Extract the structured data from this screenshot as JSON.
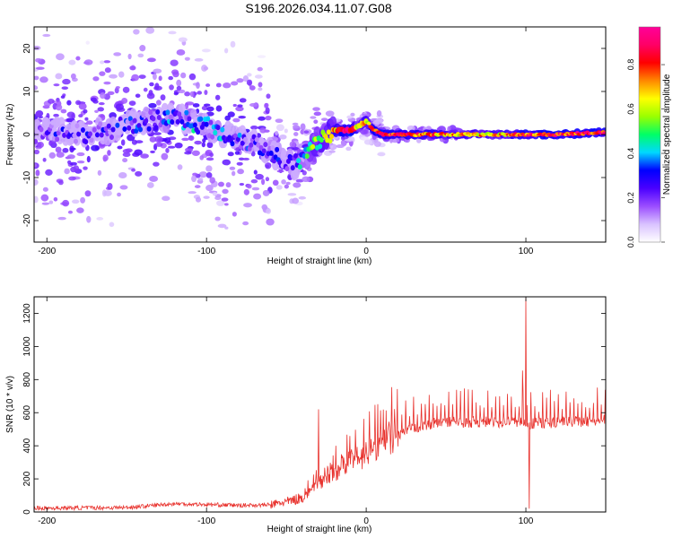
{
  "title": "S196.2026.034.11.07.G08",
  "chart_data": [
    {
      "type": "heatmap",
      "xlabel": "Height of straight line (km)",
      "ylabel": "Frequency (Hz)",
      "xlim": [
        -208,
        150
      ],
      "ylim": [
        -25,
        25
      ],
      "xticks": [
        -200,
        -100,
        0,
        100
      ],
      "xtick_labels": [
        "-200",
        "-100",
        "0",
        "100"
      ],
      "yticks": [
        -20,
        -10,
        0,
        10,
        20
      ],
      "ytick_labels": [
        "-20",
        "-10",
        "0",
        "10",
        "20"
      ],
      "colorbar": {
        "label": "Normalized spectral amplitude",
        "range": [
          0,
          0.97
        ],
        "ticks": [
          0.0,
          0.2,
          0.4,
          0.6,
          0.8
        ],
        "tick_labels": [
          "0.0",
          "0.2",
          "0.4",
          "0.6",
          "0.8"
        ],
        "colors": [
          "#ffffff",
          "#d9c2ff",
          "#9b4dff",
          "#4a00ff",
          "#0000ff",
          "#00d8ff",
          "#00ff66",
          "#99ff00",
          "#ffff00",
          "#ff8800",
          "#ff0000",
          "#ff0066",
          "#ff0099"
        ]
      },
      "ridge": {
        "x": [
          -208,
          -200,
          -180,
          -160,
          -140,
          -120,
          -110,
          -100,
          -90,
          -80,
          -70,
          -60,
          -50,
          -45,
          -40,
          -35,
          -30,
          -25,
          -20,
          -15,
          -10,
          -5,
          0,
          5,
          10,
          20,
          40,
          60,
          80,
          95,
          100,
          120,
          150
        ],
        "freq": [
          0,
          1,
          0,
          1,
          3,
          4,
          3,
          2,
          0,
          -1,
          -2,
          -4,
          -6,
          -7,
          -6,
          -4,
          -1,
          0,
          1,
          1,
          1,
          2,
          3,
          1,
          0,
          0,
          0,
          0,
          0,
          0,
          0,
          0,
          0.5
        ],
        "amplitude": [
          0.15,
          0.2,
          0.2,
          0.2,
          0.25,
          0.3,
          0.35,
          0.3,
          0.3,
          0.25,
          0.25,
          0.25,
          0.2,
          0.3,
          0.35,
          0.5,
          0.55,
          0.6,
          0.7,
          0.85,
          0.95,
          0.6,
          0.7,
          0.8,
          0.9,
          0.85,
          0.75,
          0.7,
          0.7,
          0.75,
          0.8,
          0.85,
          0.85
        ]
      }
    },
    {
      "type": "line",
      "xlabel": "Height of straight line (km)",
      "ylabel": "SNR (10 * v/v)",
      "xlim": [
        -208,
        150
      ],
      "ylim": [
        0,
        1300
      ],
      "xticks": [
        -200,
        -100,
        0,
        100
      ],
      "xtick_labels": [
        "-200",
        "-100",
        "0",
        "100"
      ],
      "yticks": [
        0,
        200,
        400,
        600,
        800,
        1000,
        1200
      ],
      "ytick_labels": [
        "0",
        "200",
        "400",
        "600",
        "800",
        "1000",
        "1200"
      ],
      "color": "#e8322d",
      "trend": {
        "x": [
          -208,
          -150,
          -120,
          -100,
          -80,
          -60,
          -50,
          -40,
          -30,
          -20,
          -10,
          0,
          10,
          20,
          30,
          40,
          60,
          80,
          95,
          100,
          105,
          120,
          150
        ],
        "y": [
          18,
          22,
          45,
          40,
          35,
          38,
          55,
          80,
          160,
          230,
          290,
          330,
          390,
          450,
          490,
          520,
          530,
          530,
          530,
          520,
          520,
          530,
          540
        ]
      },
      "spikes": [
        {
          "x": -30,
          "y": 620
        },
        {
          "x": 100,
          "y": 1290
        },
        {
          "x": 98,
          "y": 855
        },
        {
          "x": 102,
          "y": 20
        }
      ]
    }
  ]
}
